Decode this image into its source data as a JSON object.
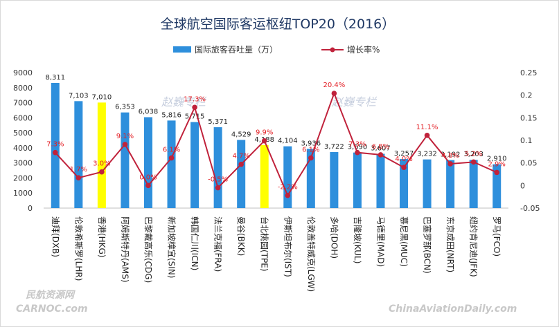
{
  "chart_data": {
    "type": "bar+line",
    "title": "全球航空国际客运枢纽TOP20（2016）",
    "categories": [
      "迪拜(DXB)",
      "伦敦希斯罗(LHR)",
      "香港(HKG)",
      "阿姆斯特丹(AMS)",
      "巴黎戴高乐(CDG)",
      "新加坡樟宜(SIN)",
      "韩国仁川(ICN)",
      "法兰克福(FRA)",
      "曼谷(BKK)",
      "台北桃园(TPE)",
      "伊斯坦布尔(IST)",
      "伦敦盖特威克(LGW)",
      "多哈(DOH)",
      "吉隆坡(KUL)",
      "马德里(MAD)",
      "慕尼黑(MUC)",
      "巴塞罗那(BCN)",
      "东京成田(NRT)",
      "纽约肯尼迪(JFK)",
      "罗马(FCO)"
    ],
    "series": [
      {
        "name": "国际旅客吞吐量（万）",
        "axis": "left",
        "kind": "bar",
        "color": "#2e8fdc",
        "highlight_color": "#ffff00",
        "highlight_indices": [
          2,
          9
        ],
        "values": [
          8311,
          7103,
          7010,
          6353,
          6038,
          5816,
          5715,
          5371,
          4529,
          4188,
          4104,
          3936,
          3722,
          3690,
          3607,
          3257,
          3232,
          3192,
          3203,
          2910
        ],
        "labels": [
          "8,311",
          "7,103",
          "7,010",
          "6,353",
          "6,038",
          "5,816",
          "5,715",
          "5,371",
          "4,529",
          "4,188",
          "4,104",
          "3,936",
          "3,722",
          "3,690",
          "3,607",
          "3,257",
          "3,232",
          "3,192",
          "3,203",
          "2,910"
        ]
      },
      {
        "name": "增长率%",
        "axis": "right",
        "kind": "line",
        "color": "#c0223b",
        "values": [
          0.073,
          0.017,
          0.03,
          0.091,
          0.0,
          0.061,
          0.173,
          -0.005,
          0.047,
          0.099,
          -0.022,
          0.061,
          0.204,
          0.073,
          0.068,
          0.04,
          0.111,
          0.048,
          0.052,
          0.029
        ],
        "labels": [
          "7.3%",
          "1.7%",
          "3.0%",
          "9.1%",
          "0.0%",
          "6.1%",
          "17.3%",
          "-0.5%",
          "4.7%",
          "9.9%",
          "-2.2%",
          "6.1%",
          "20.4%",
          "7.3%",
          "6.8%",
          "4.0%",
          "11.1%",
          "4.8%",
          "5.2%",
          "2.9%"
        ]
      }
    ],
    "y_left": {
      "min": 0,
      "max": 9000,
      "step": 1000,
      "ticks": [
        "0",
        "1000",
        "2000",
        "3000",
        "4000",
        "5000",
        "6000",
        "7000",
        "8000",
        "9000"
      ]
    },
    "y_right": {
      "min": -0.05,
      "max": 0.25,
      "step": 0.05,
      "ticks": [
        "-0.05",
        "0",
        "0.05",
        "0.1",
        "0.15",
        "0.2",
        "0.25"
      ]
    },
    "grid": false,
    "legend": "top-center",
    "watermarks": [
      "赵巍专栏",
      "赵巍专栏",
      "民航资源网",
      "CARNOC.com",
      "ChinaAviationDaily.com"
    ]
  }
}
